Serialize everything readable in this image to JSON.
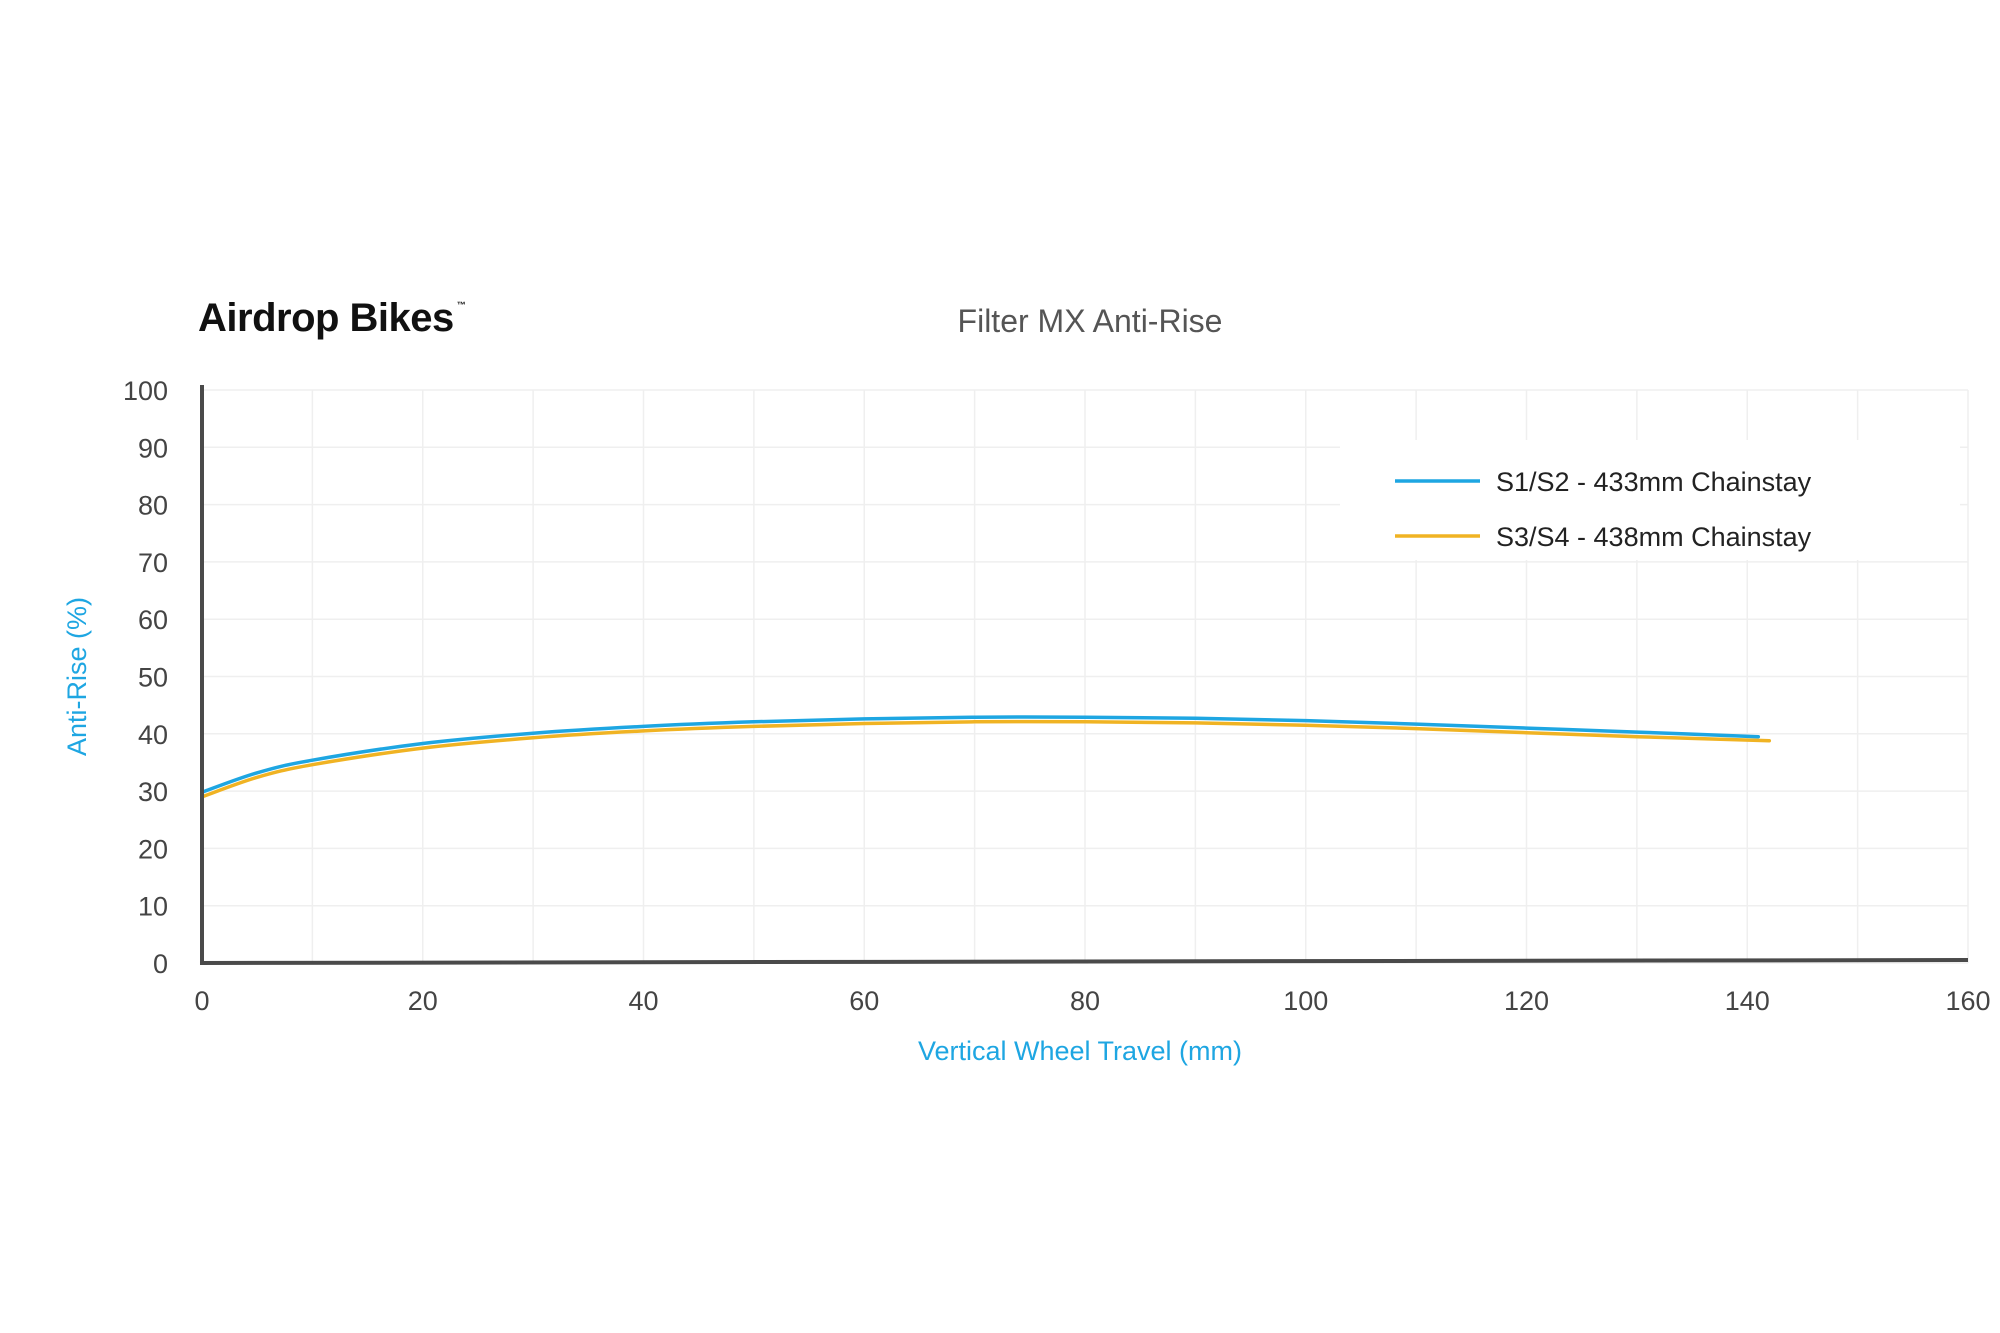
{
  "brand": {
    "name": "Airdrop Bikes",
    "trademark": "™"
  },
  "colors": {
    "series1": "#1ea6e2",
    "series2": "#f0b323",
    "axis_label": "#1ea6e2",
    "axis": "#4a4a4a",
    "grid": "#efefef"
  },
  "chart_data": {
    "type": "line",
    "title": "Filter MX Anti-Rise",
    "xlabel": "Vertical Wheel Travel (mm)",
    "ylabel": "Anti-Rise (%)",
    "xlim": [
      0,
      160
    ],
    "ylim": [
      0,
      100
    ],
    "xticks": [
      0,
      20,
      40,
      60,
      80,
      100,
      120,
      140,
      160
    ],
    "yticks": [
      0,
      10,
      20,
      30,
      40,
      50,
      60,
      70,
      80,
      90,
      100
    ],
    "grid": true,
    "legend": "top-right",
    "series": [
      {
        "name": "S1/S2 - 433mm Chainstay",
        "color": "#1ea6e2",
        "x": [
          0,
          5,
          10,
          20,
          30,
          40,
          50,
          60,
          70,
          80,
          90,
          100,
          110,
          120,
          130,
          141
        ],
        "y": [
          29.8,
          33.2,
          35.4,
          38.3,
          40.1,
          41.3,
          42.1,
          42.6,
          42.9,
          42.9,
          42.7,
          42.3,
          41.7,
          41.0,
          40.3,
          39.5
        ]
      },
      {
        "name": "S3/S4 - 438mm Chainstay",
        "color": "#f0b323",
        "x": [
          0,
          5,
          10,
          20,
          30,
          40,
          50,
          60,
          70,
          80,
          90,
          100,
          110,
          120,
          130,
          142
        ],
        "y": [
          29.0,
          32.4,
          34.6,
          37.5,
          39.3,
          40.5,
          41.3,
          41.8,
          42.1,
          42.1,
          41.9,
          41.5,
          40.9,
          40.2,
          39.5,
          38.8
        ]
      }
    ]
  }
}
